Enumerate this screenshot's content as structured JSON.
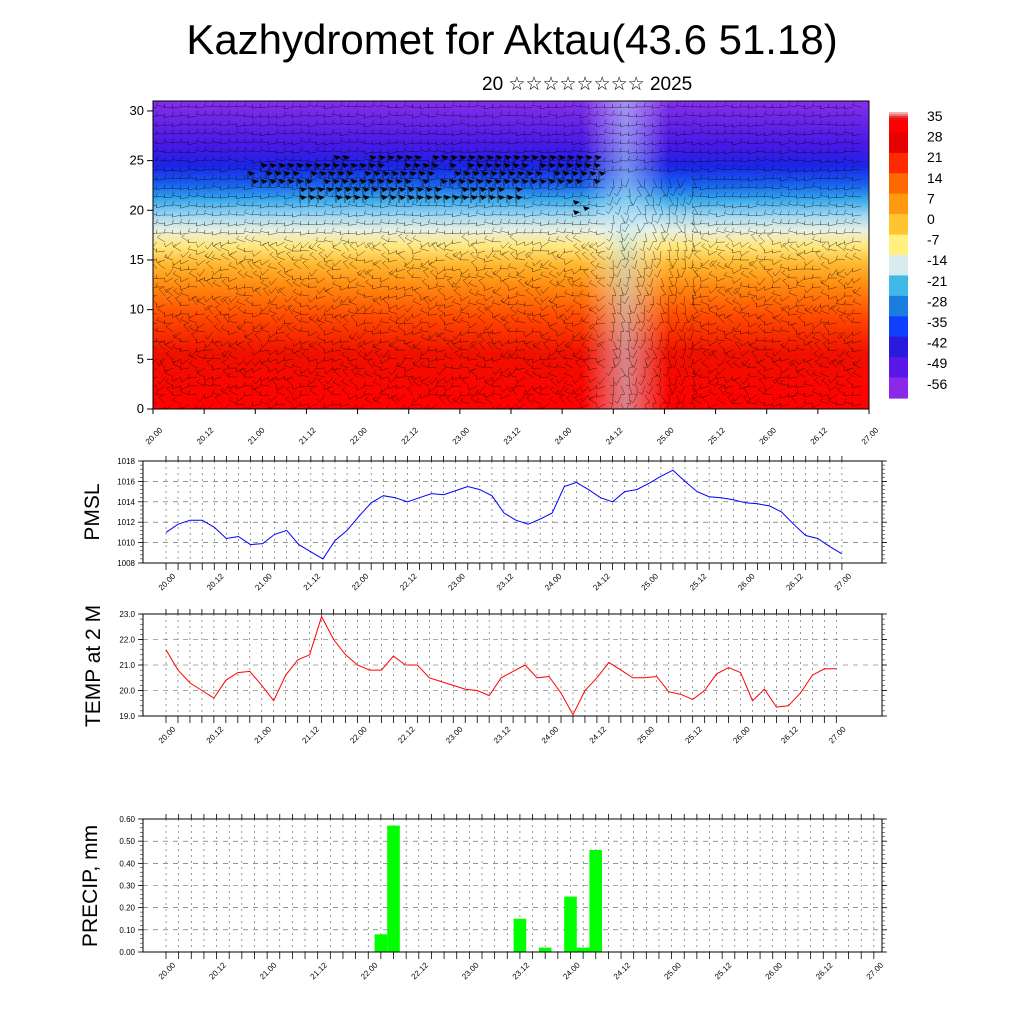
{
  "header": {
    "title": "Kazhydromet for Aktau(43.6 51.18)",
    "subtitle": "20 ☆☆☆☆☆☆☆☆ 2025"
  },
  "colors": {
    "pmsl_line": "#0000ff",
    "temp_line": "#ff0000",
    "precip_bar": "#00ff00"
  },
  "chart_data": [
    {
      "type": "heatmap",
      "title": "",
      "xlabel": "",
      "ylabel": "",
      "x_ticks": [
        "20.00",
        "20.12",
        "21.00",
        "21.12",
        "22.00",
        "22.12",
        "23.00",
        "23.12",
        "24.00",
        "24.12",
        "25.00",
        "25.12",
        "26.00",
        "26.12",
        "27.00"
      ],
      "y_ticks": [
        "0",
        "5",
        "10",
        "15",
        "20",
        "25",
        "30"
      ],
      "ylim": [
        0,
        31
      ],
      "overlay": "wind barbs",
      "colorbar_labels": [
        "35",
        "28",
        "21",
        "14",
        "7",
        "0",
        "-7",
        "-14",
        "-21",
        "-28",
        "-35",
        "-42",
        "-49",
        "-56"
      ],
      "colorbar_colors": [
        "#ff0000",
        "#e60000",
        "#ff2a00",
        "#ff6a00",
        "#ff9a10",
        "#ffc430",
        "#fff080",
        "#d8ecf0",
        "#40b8e8",
        "#1a7ee0",
        "#1040ff",
        "#2a1ae0",
        "#5a18e8",
        "#8a2ae8"
      ]
    },
    {
      "type": "line",
      "title": "",
      "xlabel": "",
      "ylabel": "PMSL",
      "ylim": [
        1008,
        1018
      ],
      "y_ticks": [
        "1008",
        "1010",
        "1012",
        "1014",
        "1016",
        "1018"
      ],
      "x_ticks": [
        "20.00",
        "20.12",
        "21.00",
        "21.12",
        "22.00",
        "22.12",
        "23.00",
        "23.12",
        "24.00",
        "24.12",
        "25.00",
        "25.12",
        "26.00",
        "26.12",
        "27.00"
      ],
      "series": [
        {
          "values": [
            1011.0,
            1011.8,
            1012.2,
            1012.2,
            1011.5,
            1010.4,
            1010.6,
            1009.8,
            1009.9,
            1010.8,
            1011.2,
            1009.8,
            1009.1,
            1008.4,
            1010.2,
            1011.2,
            1012.6,
            1013.9,
            1014.6,
            1014.4,
            1014.0,
            1014.4,
            1014.8,
            1014.7,
            1015.1,
            1015.5,
            1015.2,
            1014.6,
            1012.9,
            1012.2,
            1011.8,
            1012.3,
            1012.9,
            1015.5,
            1015.9,
            1015.2,
            1014.4,
            1014.0,
            1015.0,
            1015.2,
            1015.8,
            1016.5,
            1017.1,
            1016.0,
            1015.0,
            1014.5,
            1014.4,
            1014.2,
            1013.9,
            1013.8,
            1013.6,
            1013.0,
            1011.8,
            1010.7,
            1010.4,
            1009.6,
            1008.9
          ]
        }
      ]
    },
    {
      "type": "line",
      "title": "",
      "xlabel": "",
      "ylabel": "TEMP at 2 M",
      "ylim": [
        19.0,
        23.0
      ],
      "y_ticks": [
        "19.0",
        "20.0",
        "21.0",
        "22.0",
        "23.0"
      ],
      "x_ticks": [
        "20.00",
        "20.12",
        "21.00",
        "21.12",
        "22.00",
        "22.12",
        "23.00",
        "23.12",
        "24.00",
        "24.12",
        "25.00",
        "25.12",
        "26.00",
        "26.12",
        "27.00"
      ],
      "series": [
        {
          "values": [
            21.6,
            20.8,
            20.3,
            20.0,
            19.7,
            20.4,
            20.7,
            20.75,
            20.2,
            19.6,
            20.6,
            21.2,
            21.4,
            22.9,
            22.0,
            21.4,
            21.0,
            20.8,
            20.8,
            21.35,
            21.0,
            21.0,
            20.5,
            20.35,
            20.2,
            20.05,
            20.0,
            19.8,
            20.5,
            20.75,
            21.0,
            20.5,
            20.55,
            19.9,
            19.05,
            20.0,
            20.5,
            21.1,
            20.8,
            20.5,
            20.5,
            20.55,
            19.95,
            19.85,
            19.65,
            20.0,
            20.65,
            20.9,
            20.7,
            19.6,
            20.05,
            19.35,
            19.4,
            19.9,
            20.6,
            20.85,
            20.85
          ]
        }
      ]
    },
    {
      "type": "bar",
      "title": "",
      "xlabel": "",
      "ylabel": "PRECIP, mm",
      "ylim": [
        0.0,
        0.6
      ],
      "y_ticks": [
        "0.00",
        "0.10",
        "0.20",
        "0.30",
        "0.40",
        "0.50",
        "0.60"
      ],
      "x_ticks": [
        "20.00",
        "20.12",
        "21.00",
        "21.12",
        "22.00",
        "22.12",
        "23.00",
        "23.12",
        "24.00",
        "24.12",
        "25.00",
        "25.12",
        "26.00",
        "26.12",
        "27.00"
      ],
      "series": [
        {
          "values": [
            0,
            0,
            0,
            0,
            0,
            0,
            0,
            0,
            0,
            0,
            0,
            0,
            0,
            0,
            0,
            0,
            0,
            0.08,
            0.57,
            0,
            0,
            0,
            0,
            0,
            0,
            0,
            0,
            0,
            0.15,
            0,
            0.02,
            0,
            0.25,
            0.02,
            0.46,
            0,
            0,
            0,
            0,
            0,
            0,
            0,
            0,
            0,
            0,
            0,
            0,
            0,
            0,
            0,
            0,
            0,
            0,
            0,
            0,
            0,
            0
          ]
        }
      ]
    }
  ]
}
